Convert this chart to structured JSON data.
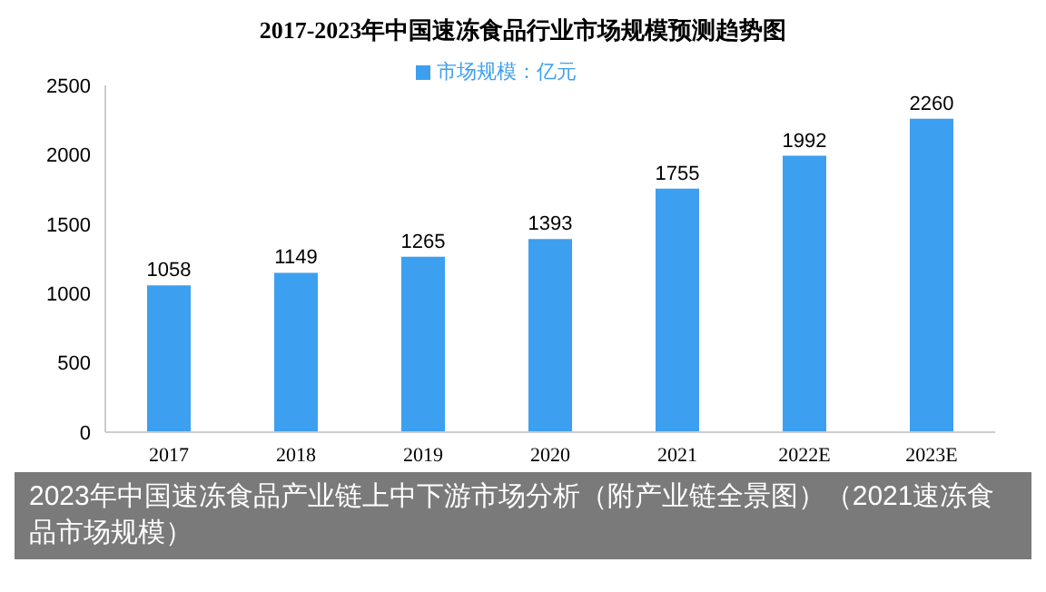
{
  "chart_data": {
    "type": "bar",
    "title": "2017-2023年中国速冻食品行业市场规模预测趋势图",
    "categories": [
      "2017",
      "2018",
      "2019",
      "2020",
      "2021",
      "2022E",
      "2023E"
    ],
    "series": [
      {
        "name": "市场规模：亿元",
        "color": "#3d9ff0",
        "values": [
          1058,
          1149,
          1265,
          1393,
          1755,
          1992,
          2260
        ]
      }
    ],
    "ylim": [
      0,
      2500
    ],
    "yticks": [
      0,
      500,
      1000,
      1500,
      2000,
      2500
    ],
    "grid": false,
    "legend": "top",
    "data_labels": true,
    "annotations": [
      "2023年中国速冻食品产业链上中下游市场分析（附产业链全景图）（2021速冻食品市场规模）"
    ]
  }
}
